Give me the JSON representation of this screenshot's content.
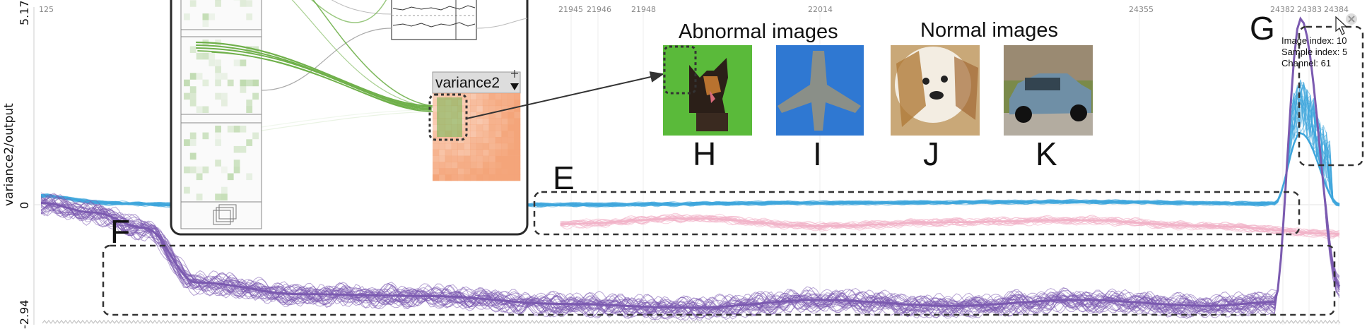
{
  "chart_data": {
    "type": "line",
    "ylabel": "variance2/output",
    "y_ticks": [
      "5.17",
      "0",
      "-2.94"
    ],
    "ylim": [
      -2.94,
      5.17
    ],
    "x_ticks": [
      "125",
      "21945",
      "21946",
      "21948",
      "22014",
      "24355",
      "24382",
      "24383",
      "24384"
    ],
    "series": [
      {
        "color": "#3ea6dc",
        "x": [
          0,
          5,
          10,
          20,
          40,
          60,
          80,
          95,
          97,
          100
        ],
        "y": [
          0.25,
          0.05,
          0.0,
          0.02,
          0.0,
          0.05,
          0.08,
          0.03,
          2.0,
          0.0
        ]
      },
      {
        "color": "#f1b3c8",
        "x": [
          40,
          50,
          60,
          70,
          80,
          90,
          100
        ],
        "y": [
          -0.5,
          -0.35,
          -0.55,
          -0.45,
          -0.4,
          -0.55,
          -0.75
        ]
      },
      {
        "color": "#7b5ab0",
        "x": [
          0,
          4,
          8,
          12,
          20,
          30,
          40,
          50,
          60,
          70,
          80,
          90,
          95,
          97,
          100
        ],
        "y": [
          0.05,
          -0.2,
          -0.6,
          -2.0,
          -2.3,
          -2.35,
          -2.55,
          -2.65,
          -2.45,
          -2.6,
          -2.45,
          -2.6,
          -2.5,
          5.2,
          -2.1
        ]
      }
    ]
  },
  "annotations": {
    "E": "E",
    "F": "F",
    "G": "G",
    "H": "H",
    "I": "I",
    "J": "J",
    "K": "K",
    "abnormal_title": "Abnormal images",
    "normal_title": "Normal images"
  },
  "node": {
    "label": "variance2"
  },
  "tooltip": {
    "line1": "Image index: 10",
    "line2": "Sample index: 5",
    "line3": "Channel: 61"
  },
  "colors": {
    "blue": "#3ea6dc",
    "pink": "#f1b3c8",
    "purple": "#7b5ab0",
    "green": "#6fb04a",
    "orange": "#f4a57a"
  }
}
